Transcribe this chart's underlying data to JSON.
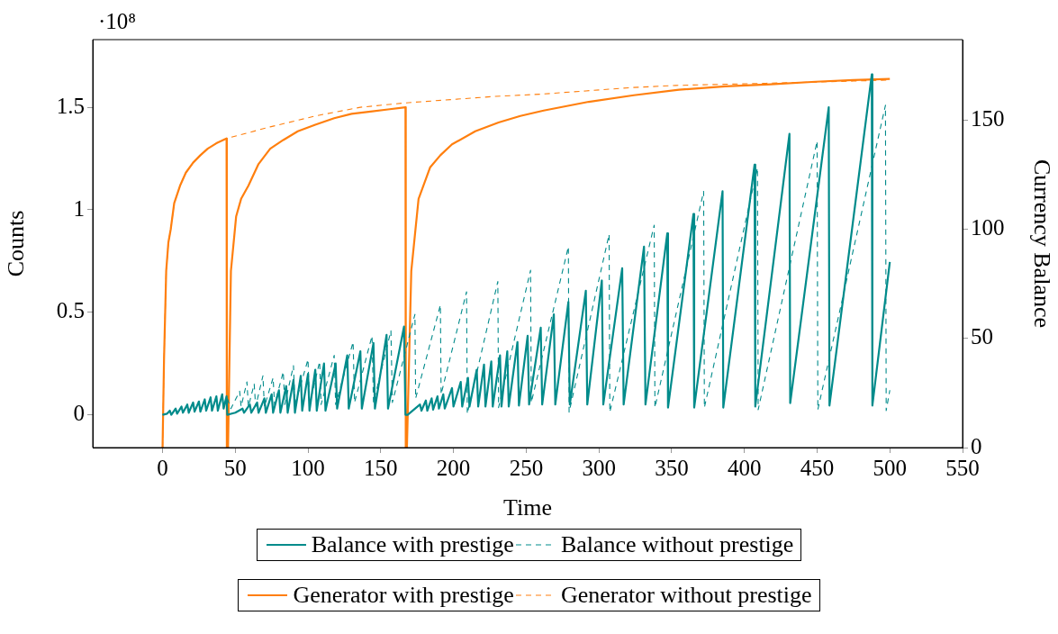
{
  "chart_data": {
    "type": "line",
    "xlabel": "Time",
    "ylabel": "Counts",
    "y2label": "Currency Balance",
    "annotations": [
      "·10⁸"
    ],
    "xlim": [
      -48,
      550
    ],
    "xticks": [
      0,
      50,
      100,
      150,
      200,
      250,
      300,
      350,
      400,
      450,
      500,
      550
    ],
    "ylim": [
      -0.16,
      1.83
    ],
    "yticks": [
      0,
      0.5,
      1,
      1.5
    ],
    "y2lim": [
      0,
      187
    ],
    "y2ticks": [
      0,
      50,
      100,
      150
    ],
    "grid": false,
    "legend": "bottom",
    "marker": "none",
    "series": [
      {
        "name": "Balance with prestige",
        "color": "#008b8b",
        "type": "line",
        "axis": "y",
        "line_style": "solid",
        "x": [
          0,
          3,
          5,
          6,
          9,
          10,
          13,
          14,
          17,
          18,
          21,
          22,
          25,
          26,
          29,
          30,
          33,
          34,
          37,
          38,
          41,
          42,
          44,
          44.5,
          50,
          55,
          56,
          60,
          61,
          65,
          66,
          70,
          71,
          75,
          76,
          80,
          81,
          85,
          86,
          90,
          91,
          95,
          96,
          100,
          101,
          105,
          106,
          111,
          112,
          119,
          120,
          127,
          128,
          136,
          137,
          145,
          146,
          154,
          155,
          166,
          167,
          168.5,
          177,
          178,
          181,
          182,
          185,
          186,
          189,
          190,
          193,
          194,
          199,
          200,
          205,
          206,
          210,
          211,
          216,
          217,
          221,
          222,
          226,
          227,
          232,
          233,
          237,
          238,
          244,
          245,
          251,
          252,
          260,
          261,
          269,
          270,
          279,
          280,
          291,
          292,
          302,
          303,
          316,
          317,
          331,
          332,
          347,
          347.5,
          365,
          365.5,
          385,
          385.5,
          407,
          407.5,
          431,
          431.5,
          458,
          458.5,
          487.6,
          488,
          500
        ],
        "values": [
          0,
          0.005,
          0.02,
          0,
          0.03,
          0.005,
          0.04,
          0.01,
          0.05,
          0.01,
          0.06,
          0.015,
          0.065,
          0.015,
          0.075,
          0.02,
          0.085,
          0.02,
          0.09,
          0.02,
          0.1,
          0.03,
          0.09,
          0,
          0.01,
          0.03,
          0.01,
          0.05,
          0.01,
          0.06,
          0.01,
          0.08,
          0.01,
          0.1,
          0.01,
          0.12,
          0.01,
          0.14,
          0.01,
          0.17,
          0.01,
          0.19,
          0.02,
          0.2,
          0.02,
          0.22,
          0.02,
          0.25,
          0.02,
          0.25,
          0.03,
          0.29,
          0.03,
          0.31,
          0.03,
          0.35,
          0.03,
          0.39,
          0.03,
          0.43,
          0,
          0,
          0.05,
          0.02,
          0.07,
          0.02,
          0.08,
          0.025,
          0.09,
          0.03,
          0.1,
          0.03,
          0.13,
          0.04,
          0.16,
          0.04,
          0.18,
          0.04,
          0.22,
          0.04,
          0.245,
          0.04,
          0.26,
          0.04,
          0.29,
          0.04,
          0.31,
          0.04,
          0.355,
          0.045,
          0.385,
          0.05,
          0.425,
          0.05,
          0.49,
          0.05,
          0.55,
          0.05,
          0.605,
          0.05,
          0.655,
          0.05,
          0.715,
          0.05,
          0.82,
          0.05,
          0.885,
          0.035,
          0.98,
          0.035,
          1.09,
          0.035,
          1.22,
          0.04,
          1.37,
          0.057,
          1.5,
          0.045,
          1.66,
          0.045,
          0.745
        ]
      },
      {
        "name": "Balance without prestige",
        "color": "#008b8b",
        "type": "line",
        "axis": "y",
        "line_style": "dashed",
        "x": [
          0,
          3,
          5,
          6,
          9,
          10,
          13,
          14,
          17,
          18,
          21,
          22,
          25,
          26,
          29,
          30,
          33,
          34,
          37,
          38,
          41,
          42,
          44,
          47,
          53,
          54,
          58,
          59,
          63,
          64,
          69,
          70,
          76,
          77,
          83,
          84,
          90,
          91,
          100,
          101,
          108,
          109,
          118,
          119,
          131,
          132,
          144,
          145,
          157,
          158,
          173.5,
          174,
          191,
          191.5,
          209,
          209.5,
          230.5,
          231,
          253,
          253.5,
          279,
          279.5,
          307,
          307.5,
          338,
          338.5,
          372,
          372.5,
          409,
          409.5,
          450,
          450.5,
          497,
          497.5,
          500
        ],
        "values": [
          0,
          0.005,
          0.02,
          0,
          0.03,
          0.005,
          0.04,
          0.01,
          0.05,
          0.01,
          0.06,
          0.015,
          0.065,
          0.015,
          0.075,
          0.02,
          0.085,
          0.02,
          0.09,
          0.02,
          0.1,
          0.03,
          0.09,
          0.03,
          0.115,
          0.04,
          0.16,
          0.04,
          0.15,
          0.04,
          0.19,
          0.04,
          0.18,
          0.05,
          0.21,
          0.05,
          0.24,
          0.05,
          0.27,
          0.05,
          0.26,
          0.05,
          0.29,
          0.05,
          0.355,
          0.06,
          0.385,
          0.06,
          0.41,
          0.06,
          0.49,
          0.08,
          0.535,
          0.1,
          0.6,
          0.005,
          0.65,
          0.035,
          0.705,
          0.06,
          0.82,
          0.013,
          0.88,
          0.013,
          0.925,
          0.035,
          1.09,
          0.035,
          1.205,
          0.025,
          1.335,
          0.025,
          1.51,
          0.02,
          0.12
        ]
      },
      {
        "name": "Generator with prestige",
        "color": "#ff7f0e",
        "type": "line",
        "axis": "y2",
        "line_style": "solid",
        "x": [
          0,
          1,
          2.5,
          4,
          5.6,
          8,
          12,
          16,
          21,
          26,
          31,
          37,
          44,
          44.2,
          45,
          47,
          50.6,
          54,
          59,
          66,
          74,
          83,
          93,
          105,
          118,
          130,
          143,
          155,
          167,
          167.2,
          168,
          171,
          176,
          184,
          191,
          199,
          215,
          231,
          246,
          262,
          293,
          324,
          355,
          387,
          418,
          449,
          475,
          500
        ],
        "values": [
          0,
          40,
          81,
          94,
          100,
          112,
          120,
          126,
          130.6,
          134,
          137,
          139.5,
          141.7,
          0,
          0,
          81,
          106,
          114,
          120,
          130,
          137,
          141,
          145,
          148,
          151,
          153,
          154,
          155,
          156,
          0,
          0,
          81,
          114,
          128.5,
          134,
          139,
          145,
          149,
          152,
          154.5,
          158.5,
          161.5,
          164,
          165.6,
          166.5,
          167.7,
          168.5,
          169
        ]
      },
      {
        "name": "Generator without prestige",
        "color": "#ff7f0e",
        "type": "line",
        "axis": "y2",
        "line_style": "dashed",
        "x": [
          0,
          1,
          2.5,
          4,
          5.6,
          8,
          12,
          16,
          21,
          26,
          31,
          37,
          44,
          74,
          105,
          136,
          167,
          198,
          229,
          260,
          291,
          322,
          353,
          384,
          415,
          446,
          475,
          500
        ],
        "values": [
          0,
          40,
          81,
          94,
          100,
          112,
          120,
          126,
          130.6,
          134,
          137,
          139.5,
          141.7,
          147,
          152,
          156,
          158,
          159.5,
          161,
          162,
          163.5,
          165,
          166,
          166.5,
          167,
          167.5,
          168,
          168.5
        ]
      }
    ]
  }
}
